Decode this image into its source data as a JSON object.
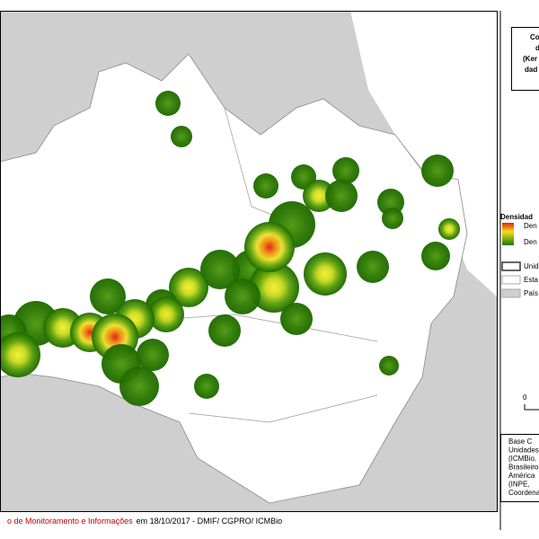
{
  "title_box": {
    "lines": [
      "Co",
      "d",
      "(Ker",
      "dad"
    ]
  },
  "legend": {
    "title": "Densidad",
    "items": [
      "Den",
      "Den",
      "Unid",
      "Esta",
      "País"
    ]
  },
  "scale": {
    "label": "0"
  },
  "source": {
    "lines": [
      "Base    C",
      "Unidades",
      "(ICMBio,",
      "Brasileiro",
      "América",
      "(INPE,",
      "Coordena"
    ]
  },
  "footer": {
    "highlight": "o de Monitoramento e Informações",
    "rest": "em 18/10/2017 - DMIF/ CGPRO/ ICMBio"
  }
}
